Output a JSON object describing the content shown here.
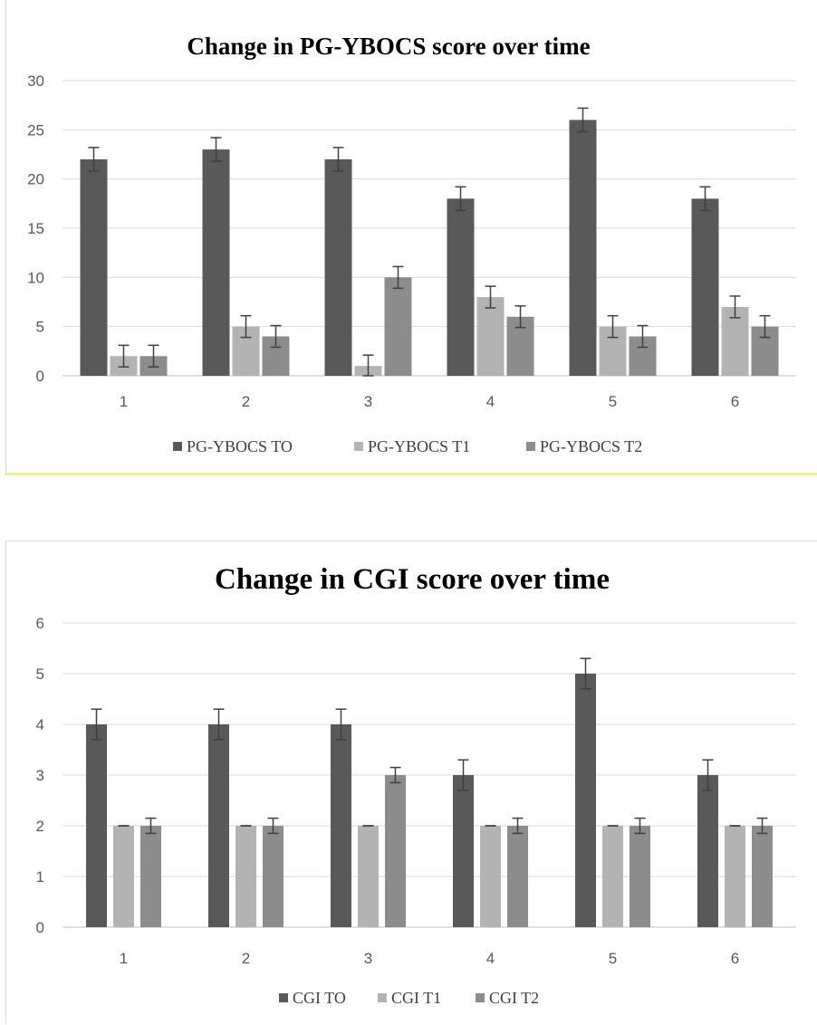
{
  "chart_data": [
    {
      "type": "bar",
      "title": "Change in PG-YBOCS score over time",
      "categories": [
        "1",
        "2",
        "3",
        "4",
        "5",
        "6"
      ],
      "series": [
        {
          "name": "PG-YBOCS TO",
          "values": [
            22,
            23,
            22,
            18,
            26,
            18
          ],
          "errors": [
            1.2,
            1.2,
            1.2,
            1.2,
            1.2,
            1.2
          ],
          "color": "#595959"
        },
        {
          "name": "PG-YBOCS T1",
          "values": [
            2,
            5,
            1,
            8,
            5,
            7
          ],
          "errors": [
            1.1,
            1.1,
            1.1,
            1.1,
            1.1,
            1.1
          ],
          "color": "#b3b3b3"
        },
        {
          "name": "PG-YBOCS T2",
          "values": [
            2,
            4,
            10,
            6,
            4,
            5
          ],
          "errors": [
            1.1,
            1.1,
            1.1,
            1.1,
            1.1,
            1.1
          ],
          "color": "#8c8c8c"
        }
      ],
      "ylim": [
        0,
        30
      ],
      "yticks": [
        0,
        5,
        10,
        15,
        20,
        25,
        30
      ],
      "xlabel": "",
      "ylabel": "",
      "grid": true,
      "legend": "bottom"
    },
    {
      "type": "bar",
      "title": "Change in CGI score over time",
      "categories": [
        "1",
        "2",
        "3",
        "4",
        "5",
        "6"
      ],
      "series": [
        {
          "name": "CGI TO",
          "values": [
            4,
            4,
            4,
            3,
            5,
            3
          ],
          "errors": [
            0.3,
            0.3,
            0.3,
            0.3,
            0.3,
            0.3
          ],
          "color": "#595959"
        },
        {
          "name": "CGI T1",
          "values": [
            2,
            2,
            2,
            2,
            2,
            2
          ],
          "errors": [
            0,
            0,
            0,
            0,
            0,
            0
          ],
          "color": "#b3b3b3"
        },
        {
          "name": "CGI T2",
          "values": [
            2,
            2,
            3,
            2,
            2,
            2
          ],
          "errors": [
            0.15,
            0.15,
            0.15,
            0.15,
            0.15,
            0.15
          ],
          "color": "#8c8c8c"
        }
      ],
      "ylim": [
        0,
        6
      ],
      "yticks": [
        0,
        1,
        2,
        3,
        4,
        5,
        6
      ],
      "xlabel": "",
      "ylabel": "",
      "grid": true,
      "legend": "bottom"
    }
  ]
}
